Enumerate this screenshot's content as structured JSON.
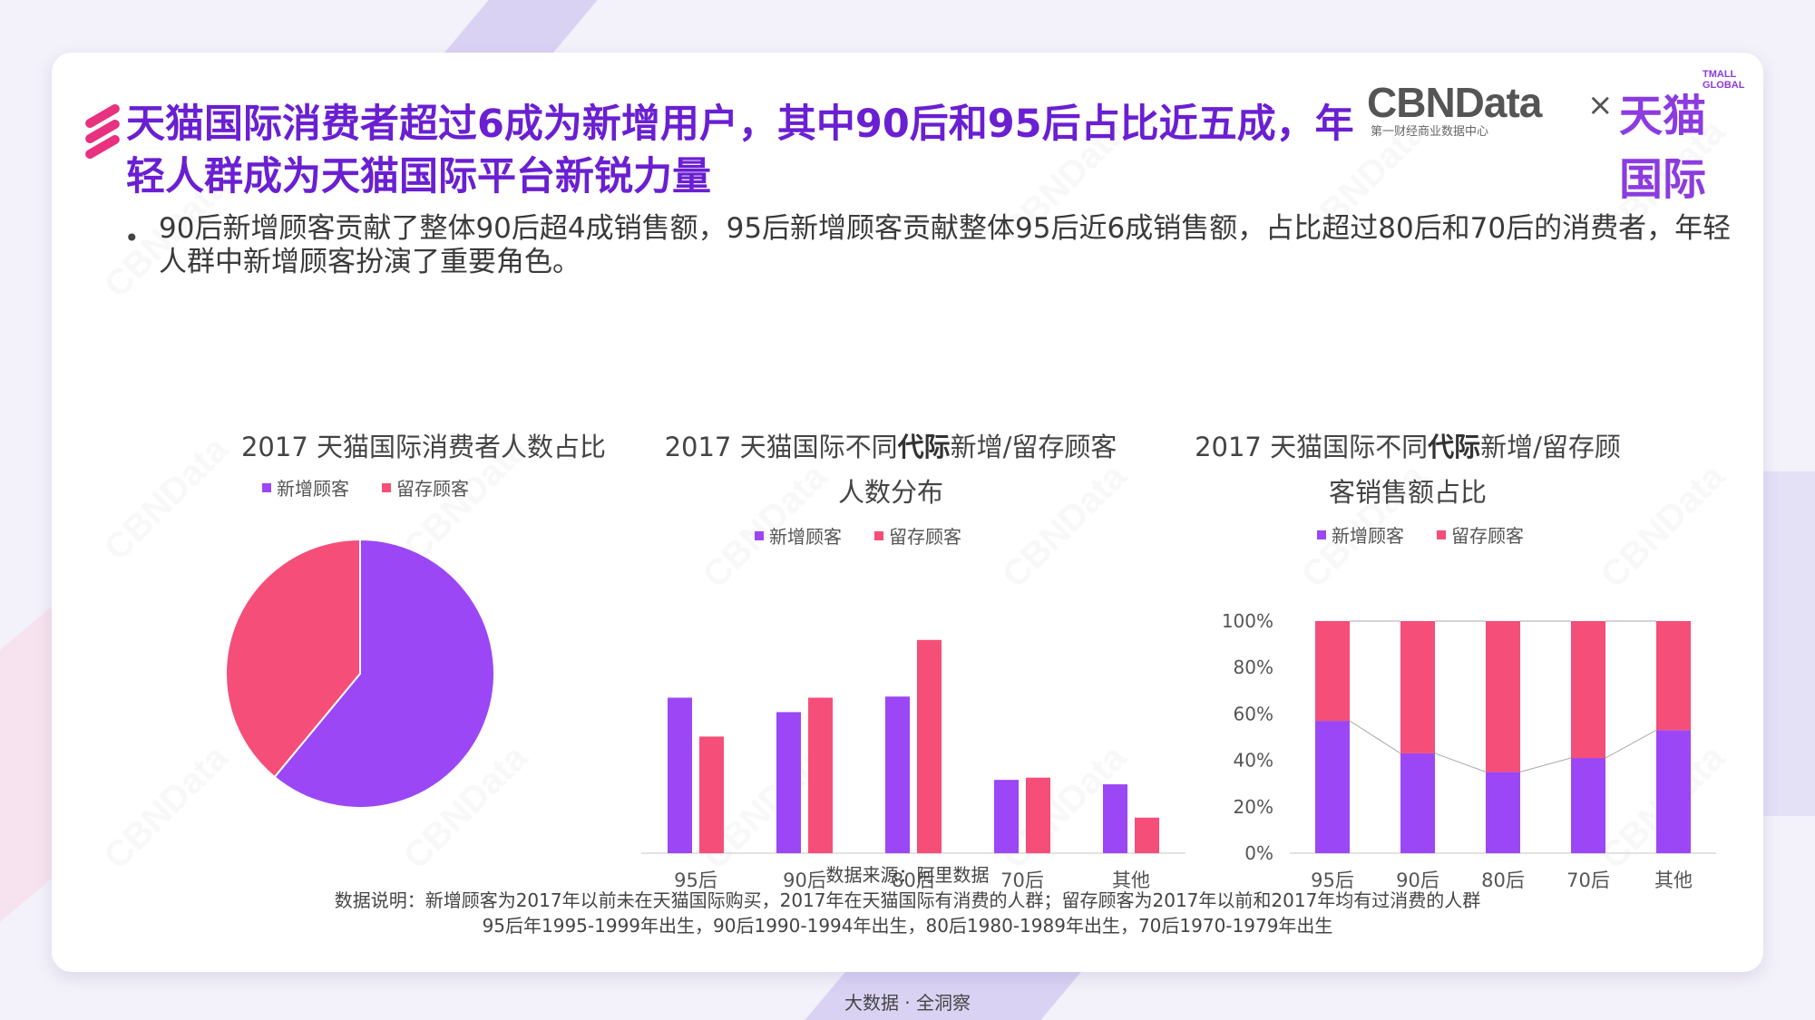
{
  "header": {
    "title": "天猫国际消费者超过6成为新增用户，其中90后和95后占比近五成，年轻人群成为天猫国际平台新锐力量",
    "bullet": "90后新增顾客贡献了整体90后超4成销售额，95后新增顾客贡献整体95后近6成销售额，占比超过80后和70后的消费者，年轻人群中新增顾客扮演了重要角色。"
  },
  "logo": {
    "brand": "CBNData",
    "brand_sub": "第一财经商业数据中心",
    "separator": "×",
    "partner": "天猫国际",
    "partner_en": "TMALL GLOBAL"
  },
  "watermark": "CBNData",
  "colors": {
    "new": "#9b47f5",
    "retained": "#f54e78",
    "title": "#6a1fd2"
  },
  "legend": {
    "new": "新增顾客",
    "retained": "留存顾客"
  },
  "chart_titles": {
    "c1": "2017 天猫国际消费者人数占比",
    "c2_pre": "2017 天猫国际不同",
    "c2_bold": "代际",
    "c2_post": "新增/留存顾客人数分布",
    "c3_pre": "2017 天猫国际不同",
    "c3_bold": "代际",
    "c3_post": "新增/留存顾客销售额占比"
  },
  "chart_data": [
    {
      "type": "pie",
      "title": "2017 天猫国际消费者人数占比",
      "labels": [
        "新增顾客",
        "留存顾客"
      ],
      "values": [
        61,
        39
      ]
    },
    {
      "type": "bar",
      "title": "2017 天猫国际不同代际新增/留存顾客人数分布",
      "categories": [
        "95后",
        "90后",
        "80后",
        "70后",
        "其他"
      ],
      "series": [
        {
          "name": "新增顾客",
          "values": [
            70,
            63.5,
            70.5,
            33,
            31
          ]
        },
        {
          "name": "留存顾客",
          "values": [
            52.5,
            70,
            96,
            34,
            16
          ]
        }
      ],
      "ylim": [
        0,
        100
      ]
    },
    {
      "type": "bar",
      "stacked": true,
      "title": "2017 天猫国际不同代际新增/留存顾客销售额占比",
      "categories": [
        "95后",
        "90后",
        "80后",
        "70后",
        "其他"
      ],
      "series": [
        {
          "name": "新增顾客",
          "values": [
            57,
            43,
            35,
            41,
            53
          ]
        },
        {
          "name": "留存顾客",
          "values": [
            43,
            57,
            65,
            59,
            47
          ]
        }
      ],
      "yticks": [
        "0%",
        "20%",
        "40%",
        "60%",
        "80%",
        "100%"
      ],
      "ylim": [
        0,
        100
      ]
    }
  ],
  "source": {
    "line1": "数据来源：阿里数据",
    "line2": "数据说明：新增顾客为2017年以前未在天猫国际购买，2017年在天猫国际有消费的人群；留存顾客为2017年以前和2017年均有过消费的人群",
    "line3": "95后年1995-1999年出生，90后1990-1994年出生，80后1980-1989年出生，70后1970-1979年出生"
  },
  "footer": "大数据 · 全洞察"
}
